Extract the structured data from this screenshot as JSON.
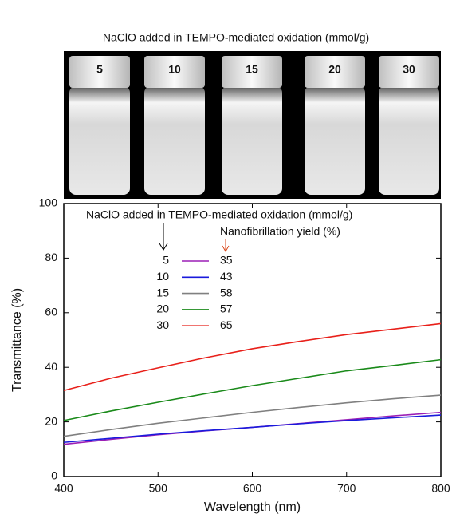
{
  "photo": {
    "title": "NaClO added in TEMPO-mediated oxidation (mmol/g)",
    "cap_labels": [
      "5",
      "10",
      "15",
      "20",
      "30"
    ]
  },
  "chart_data": {
    "type": "line",
    "xlabel": "Wavelength (nm)",
    "ylabel": "Transmittance (%)",
    "xlim": [
      400,
      800
    ],
    "ylim": [
      0,
      100
    ],
    "xticks": [
      400,
      500,
      600,
      700,
      800
    ],
    "yticks": [
      0,
      20,
      40,
      60,
      80,
      100
    ],
    "legend_title": "NaClO added in TEMPO-mediated oxidation (mmol/g)",
    "yield_title": "Nanofibrillation yield (%)",
    "yield_color": "#d9481c",
    "x": [
      400,
      450,
      500,
      550,
      600,
      650,
      700,
      750,
      800
    ],
    "series": [
      {
        "name": "5",
        "yield": 35,
        "color": "#9b1fb5",
        "values": [
          11.8,
          13.6,
          15.3,
          16.7,
          18,
          19.4,
          20.8,
          22.2,
          23.5
        ]
      },
      {
        "name": "10",
        "yield": 43,
        "color": "#1a1adc",
        "values": [
          12.5,
          14,
          15.5,
          16.8,
          18,
          19.3,
          20.5,
          21.5,
          22.5
        ]
      },
      {
        "name": "15",
        "yield": 58,
        "color": "#808080",
        "values": [
          14.7,
          17.2,
          19.5,
          21.5,
          23.5,
          25.3,
          27,
          28.5,
          29.8
        ]
      },
      {
        "name": "20",
        "yield": 57,
        "color": "#1a8a1a",
        "values": [
          20.5,
          24,
          27.2,
          30.3,
          33.3,
          36,
          38.7,
          40.7,
          42.8
        ]
      },
      {
        "name": "30",
        "yield": 65,
        "color": "#e8201a",
        "values": [
          31.5,
          36,
          39.8,
          43.5,
          46.8,
          49.5,
          52,
          54,
          56
        ]
      }
    ]
  }
}
